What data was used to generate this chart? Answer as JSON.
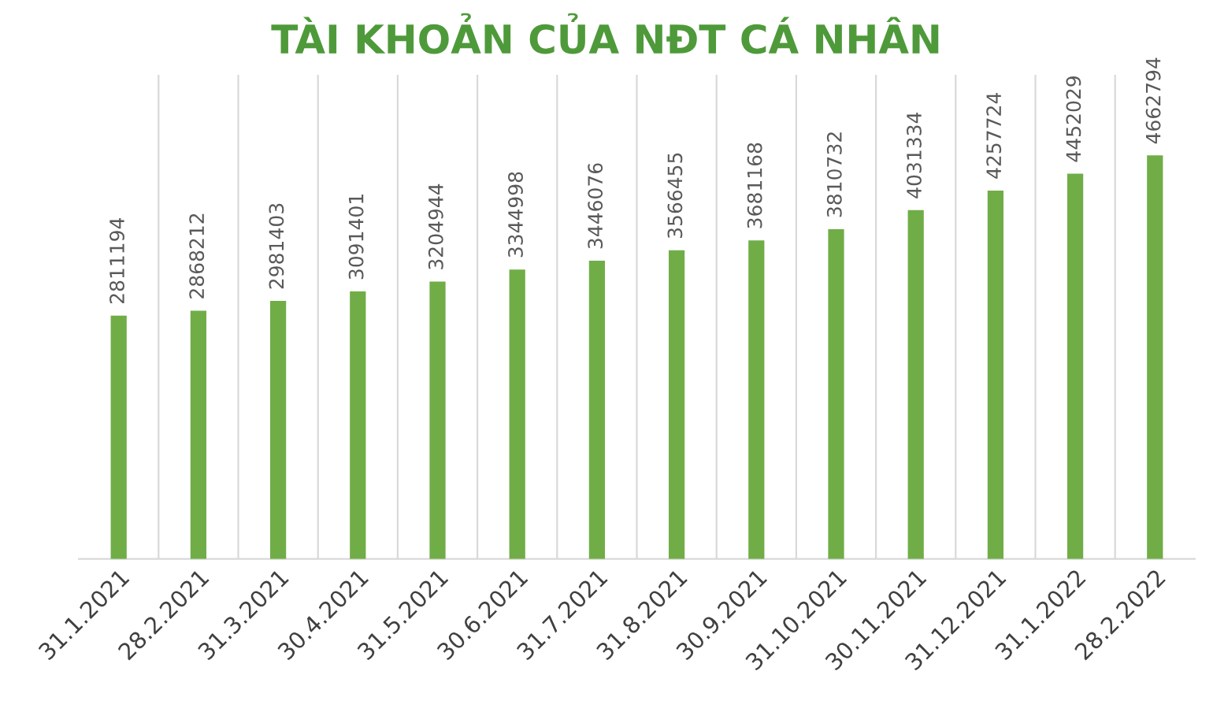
{
  "chart_data": {
    "type": "bar",
    "title": "TÀI KHOẢN CỦA NĐT CÁ NHÂN",
    "categories": [
      "31.1.2021",
      "28.2.2021",
      "31.3.2021",
      "30.4.2021",
      "31.5.2021",
      "30.6.2021",
      "31.7.2021",
      "31.8.2021",
      "30.9.2021",
      "31.10.2021",
      "30.11.2021",
      "31.12.2021",
      "31.1.2022",
      "28.2.2022"
    ],
    "values": [
      2811194,
      2868212,
      2981403,
      3091401,
      3204944,
      3344998,
      3446076,
      3566455,
      3681168,
      3810732,
      4031334,
      4257724,
      4452029,
      4662794
    ],
    "color": "#70ad47",
    "data_labels": true,
    "grid": "x",
    "legend": false
  }
}
